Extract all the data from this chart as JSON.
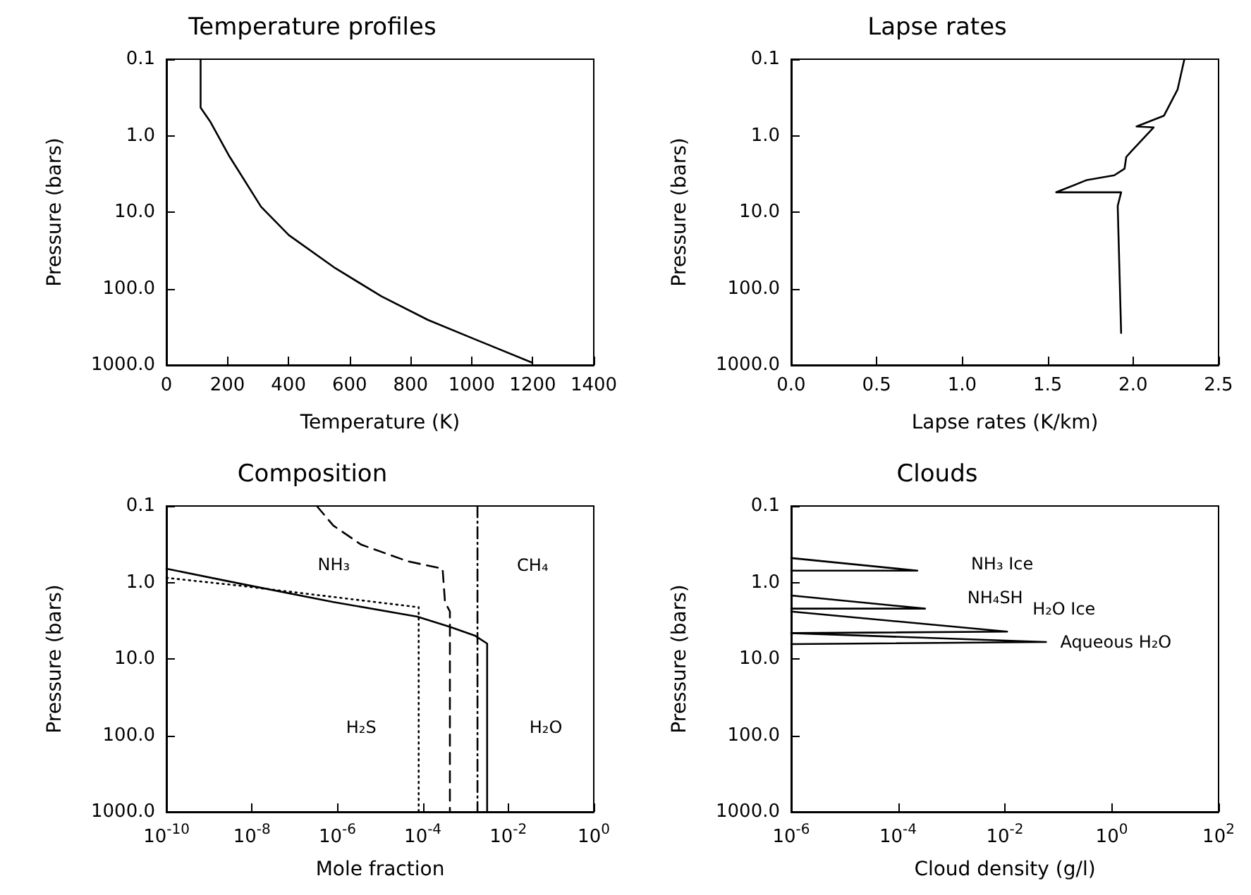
{
  "chart_data": [
    {
      "type": "line",
      "title": "Temperature profiles",
      "xlabel": "Temperature (K)",
      "ylabel": "Pressure (bars)",
      "xlim": [
        0,
        1400
      ],
      "xticks": [
        0,
        200,
        400,
        600,
        800,
        1000,
        1200,
        1400
      ],
      "ylim": [
        1000,
        0.1
      ],
      "yticks": [
        {
          "value": 0.1,
          "label": "0.1"
        },
        {
          "value": 1,
          "label": "1.0"
        },
        {
          "value": 10,
          "label": "10.0"
        },
        {
          "value": 100,
          "label": "100.0"
        },
        {
          "value": 1000,
          "label": "1000.0"
        }
      ],
      "log": "y",
      "grid": false,
      "marker": "none",
      "series": [
        {
          "color": "#000000",
          "line_style": "solid",
          "x": [
            112,
            112,
            143,
            204,
            310,
            401,
            553,
            704,
            857,
            1009,
            1199
          ],
          "values": [
            0.1,
            0.43,
            0.65,
            1.8,
            8.5,
            20,
            54,
            126,
            257,
            457,
            933
          ]
        }
      ]
    },
    {
      "type": "line",
      "title": "Lapse rates",
      "xlabel": "Lapse rates (K/km)",
      "ylabel": "Pressure (bars)",
      "xlim": [
        0,
        2.5
      ],
      "xticks": [
        {
          "value": 0,
          "label": "0.0"
        },
        {
          "value": 0.5,
          "label": "0.5"
        },
        {
          "value": 1,
          "label": "1.0"
        },
        {
          "value": 1.5,
          "label": "1.5"
        },
        {
          "value": 2,
          "label": "2.0"
        },
        {
          "value": 2.5,
          "label": "2.5"
        }
      ],
      "ylim": [
        1000,
        0.1
      ],
      "yticks": [
        {
          "value": 0.1,
          "label": "0.1"
        },
        {
          "value": 1,
          "label": "1.0"
        },
        {
          "value": 10,
          "label": "10.0"
        },
        {
          "value": 100,
          "label": "100.0"
        },
        {
          "value": 1000,
          "label": "1000.0"
        }
      ],
      "log": "y",
      "grid": false,
      "marker": "none",
      "series": [
        {
          "color": "#000000",
          "line_style": "solid",
          "x": [
            2.3,
            2.26,
            2.18,
            2.02,
            2.12,
            1.99,
            1.96,
            1.95,
            1.89,
            1.73,
            1.55,
            1.93,
            1.91,
            1.93
          ],
          "values": [
            0.1,
            0.25,
            0.55,
            0.76,
            0.78,
            1.6,
            1.9,
            2.7,
            3.3,
            3.8,
            5.5,
            5.5,
            8.3,
            380
          ]
        }
      ]
    },
    {
      "type": "line",
      "title": "Composition",
      "xlabel": "Mole fraction",
      "ylabel": "Pressure (bars)",
      "xlim": [
        1e-10,
        1
      ],
      "xticks": [
        {
          "value": 1e-10,
          "label": "10$^{-10}$"
        },
        {
          "value": 1e-08,
          "label": "10$^{-8}$"
        },
        {
          "value": 1e-06,
          "label": "10$^{-6}$"
        },
        {
          "value": 0.0001,
          "label": "10$^{-4}$"
        },
        {
          "value": 0.01,
          "label": "10$^{-2}$"
        },
        {
          "value": 1,
          "label": "10$^{0}$"
        }
      ],
      "ylim": [
        1000,
        0.1
      ],
      "yticks": [
        {
          "value": 0.1,
          "label": "0.1"
        },
        {
          "value": 1,
          "label": "1.0"
        },
        {
          "value": 10,
          "label": "10.0"
        },
        {
          "value": 100,
          "label": "100.0"
        },
        {
          "value": 1000,
          "label": "1000.0"
        }
      ],
      "log": "xy",
      "grid": false,
      "marker": "none",
      "series": [
        {
          "name": "H₂O",
          "color": "#000000",
          "line_style": "solid",
          "x": [
            1e-10,
            5e-09,
            8e-07,
            7.4e-05,
            0.00043,
            0.0017,
            0.0032,
            0.0032
          ],
          "values": [
            0.66,
            1.03,
            1.8,
            2.8,
            3.8,
            5.0,
            6.3,
            1000
          ]
        },
        {
          "name": "H₂S",
          "color": "#000000",
          "line_style": "dotted",
          "x": [
            1e-10,
            5e-09,
            7.4e-05,
            8e-05,
            8e-05
          ],
          "values": [
            0.87,
            1.1,
            2.1,
            2.1,
            1000
          ]
        },
        {
          "name": "NH₃",
          "color": "#000000",
          "line_style": "dashed",
          "x": [
            3.3e-07,
            8e-07,
            3.6e-06,
            4.5e-05,
            0.00029,
            0.00033,
            0.00043,
            0.00043
          ],
          "values": [
            0.1,
            0.18,
            0.32,
            0.53,
            0.66,
            1.8,
            2.4,
            1000
          ]
        },
        {
          "name": "CH₄",
          "color": "#000000",
          "line_style": "dashdot",
          "x": [
            0.0019,
            0.0019
          ],
          "values": [
            0.1,
            1000
          ]
        }
      ]
    },
    {
      "type": "line",
      "title": "Clouds",
      "xlabel": "Cloud density (g/l)",
      "ylabel": "Pressure (bars)",
      "xlim": [
        1e-06,
        100
      ],
      "xticks": [
        {
          "value": 1e-06,
          "label": "10$^{-6}$"
        },
        {
          "value": 0.0001,
          "label": "10$^{-4}$"
        },
        {
          "value": 0.01,
          "label": "10$^{-2}$"
        },
        {
          "value": 1,
          "label": "10$^{0}$"
        },
        {
          "value": 100,
          "label": "10$^{2}$"
        }
      ],
      "ylim": [
        1000,
        0.1
      ],
      "yticks": [
        {
          "value": 0.1,
          "label": "0.1"
        },
        {
          "value": 1,
          "label": "1.0"
        },
        {
          "value": 10,
          "label": "10.0"
        },
        {
          "value": 100,
          "label": "100.0"
        },
        {
          "value": 1000,
          "label": "1000.0"
        }
      ],
      "log": "xy",
      "grid": false,
      "marker": "none",
      "series": [
        {
          "name": "NH₃ Ice",
          "color": "#000000",
          "line_style": "solid",
          "x": [
            1e-06,
            0.00023,
            1e-06
          ],
          "values": [
            0.48,
            0.7,
            0.7
          ]
        },
        {
          "name": "NH₄SH",
          "color": "#000000",
          "line_style": "solid",
          "x": [
            1e-06,
            0.00032,
            1e-06
          ],
          "values": [
            1.48,
            2.2,
            2.2
          ]
        },
        {
          "name": "H₂O Ice",
          "color": "#000000",
          "line_style": "solid",
          "x": [
            1e-06,
            0.011,
            1e-06
          ],
          "values": [
            2.4,
            4.4,
            4.6
          ]
        },
        {
          "name": "Aqueous H₂O",
          "color": "#000000",
          "line_style": "solid",
          "x": [
            1e-06,
            0.059,
            1e-06
          ],
          "values": [
            4.6,
            6.0,
            6.4
          ]
        }
      ]
    }
  ]
}
